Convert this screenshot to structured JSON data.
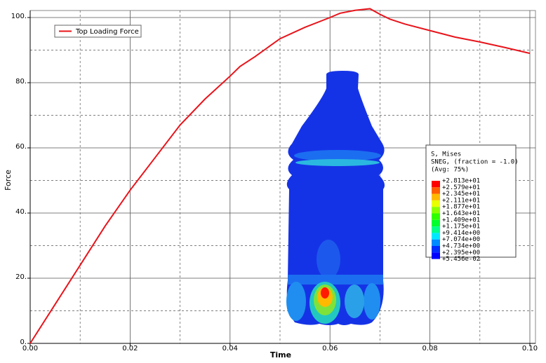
{
  "chart_data": {
    "type": "line",
    "x_label": "Time",
    "y_label": "Force",
    "x": [
      0,
      0.005,
      0.01,
      0.015,
      0.02,
      0.025,
      0.03,
      0.035,
      0.04,
      0.042,
      0.045,
      0.05,
      0.055,
      0.06,
      0.062,
      0.065,
      0.068,
      0.07,
      0.072,
      0.075,
      0.08,
      0.085,
      0.09,
      0.095,
      0.1
    ],
    "series": [
      {
        "name": "Top Loading Force",
        "color": "#e8141b",
        "values": [
          0,
          12,
          24,
          36,
          47,
          57,
          67,
          75,
          82,
          85,
          88,
          93.5,
          97,
          100,
          101.3,
          102.2,
          102.7,
          101,
          99.5,
          98,
          96,
          94,
          92.5,
          90.8,
          89
        ]
      }
    ],
    "xlim": [
      0,
      0.1
    ],
    "ylim": [
      0,
      100
    ],
    "xticks": [
      {
        "value": 0,
        "label": "0.00"
      },
      {
        "value": 0.02,
        "label": "0.02"
      },
      {
        "value": 0.04,
        "label": "0.04"
      },
      {
        "value": 0.06,
        "label": "0.06"
      },
      {
        "value": 0.08,
        "label": "0.08"
      },
      {
        "value": 0.1,
        "label": "0.10"
      }
    ],
    "yticks": [
      {
        "value": 0,
        "label": "0."
      },
      {
        "value": 20,
        "label": "20."
      },
      {
        "value": 40,
        "label": "40."
      },
      {
        "value": 60,
        "label": "60."
      },
      {
        "value": 80,
        "label": "80."
      },
      {
        "value": 100,
        "label": "100."
      }
    ],
    "grid": true,
    "minor_grid": true,
    "legend": "upper left",
    "contour_legend": {
      "title": [
        "S, Mises",
        "SNEG, (fraction = -1.0)",
        "(Avg: 75%)"
      ],
      "labels": [
        "+2.813e+01",
        "+2.579e+01",
        "+2.345e+01",
        "+2.111e+01",
        "+1.877e+01",
        "+1.643e+01",
        "+1.409e+01",
        "+1.175e+01",
        "+9.414e+00",
        "+7.074e+00",
        "+4.734e+00",
        "+2.395e+00",
        "+5.456e-02"
      ],
      "colors": [
        "#ff0000",
        "#ff5d00",
        "#ffb900",
        "#e8ff00",
        "#8bff00",
        "#2eff00",
        "#00ff2e",
        "#00ff8b",
        "#00e8ff",
        "#008bff",
        "#002eff",
        "#0000ff"
      ]
    }
  }
}
